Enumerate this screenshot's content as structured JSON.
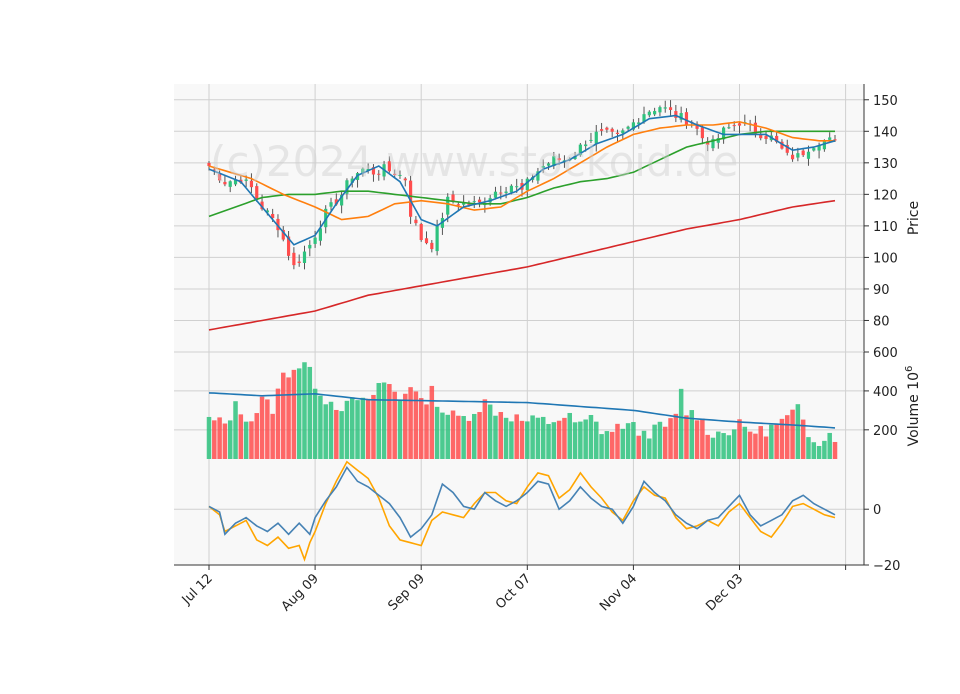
{
  "watermark": "(c)2024 www.stockoid.de",
  "colors": {
    "up": "#2ec27e",
    "down": "#ff4d4d",
    "ma_short": "#1f77b4",
    "ma_mid": "#ff7f0e",
    "ma_long": "#2ca02c",
    "ma_200": "#d62728",
    "osc_fast": "#4682b4",
    "osc_slow": "#ffa500",
    "grid": "#d0d0d0",
    "panel_bg": "#f8f8f8"
  },
  "chart_data": [
    {
      "type": "candlestick",
      "ylabel": "Price",
      "ylim": [
        70,
        155
      ],
      "yticks": [
        80,
        90,
        100,
        110,
        120,
        130,
        140,
        150
      ],
      "x_tick_labels": [
        "Jul 12",
        "Aug 09",
        "Sep 09",
        "Oct 07",
        "Nov 04",
        "Dec 03",
        ""
      ],
      "x_tick_index": [
        0,
        20,
        40,
        60,
        80,
        100,
        120
      ],
      "n_sessions": 119,
      "close_anchors": [
        [
          0,
          129
        ],
        [
          3,
          124
        ],
        [
          6,
          125
        ],
        [
          8,
          122
        ],
        [
          10,
          116
        ],
        [
          13,
          110
        ],
        [
          16,
          97
        ],
        [
          19,
          104
        ],
        [
          22,
          114
        ],
        [
          25,
          120
        ],
        [
          27,
          126
        ],
        [
          29,
          128
        ],
        [
          31,
          127
        ],
        [
          33,
          128
        ],
        [
          35,
          127
        ],
        [
          37,
          125
        ],
        [
          38,
          114
        ],
        [
          40,
          106
        ],
        [
          42,
          104
        ],
        [
          45,
          118
        ],
        [
          48,
          117
        ],
        [
          51,
          117
        ],
        [
          54,
          121
        ],
        [
          57,
          123
        ],
        [
          59,
          121
        ],
        [
          61,
          126
        ],
        [
          63,
          129
        ],
        [
          65,
          131
        ],
        [
          67,
          131
        ],
        [
          69,
          133
        ],
        [
          71,
          137
        ],
        [
          73,
          139
        ],
        [
          75,
          139
        ],
        [
          77,
          138
        ],
        [
          79,
          141
        ],
        [
          82,
          146
        ],
        [
          85,
          148
        ],
        [
          88,
          145
        ],
        [
          91,
          143
        ],
        [
          93,
          138
        ],
        [
          95,
          136
        ],
        [
          97,
          140
        ],
        [
          100,
          143
        ],
        [
          103,
          140
        ],
        [
          106,
          138
        ],
        [
          109,
          132
        ],
        [
          111,
          132
        ],
        [
          113,
          135
        ],
        [
          115,
          137
        ],
        [
          117,
          137
        ],
        [
          118,
          136
        ]
      ],
      "ma_short_anchors": [
        [
          0,
          128
        ],
        [
          6,
          124
        ],
        [
          12,
          112
        ],
        [
          16,
          104
        ],
        [
          20,
          107
        ],
        [
          24,
          117
        ],
        [
          28,
          126
        ],
        [
          32,
          129
        ],
        [
          36,
          124
        ],
        [
          40,
          112
        ],
        [
          43,
          110
        ],
        [
          48,
          116
        ],
        [
          53,
          118
        ],
        [
          58,
          121
        ],
        [
          63,
          128
        ],
        [
          68,
          131
        ],
        [
          73,
          136
        ],
        [
          78,
          139
        ],
        [
          83,
          144
        ],
        [
          88,
          145
        ],
        [
          92,
          142
        ],
        [
          97,
          139
        ],
        [
          101,
          139
        ],
        [
          105,
          139
        ],
        [
          110,
          134
        ],
        [
          114,
          135
        ],
        [
          118,
          137
        ]
      ],
      "ma_mid_anchors": [
        [
          0,
          129
        ],
        [
          8,
          125
        ],
        [
          14,
          120
        ],
        [
          20,
          116
        ],
        [
          25,
          112
        ],
        [
          30,
          113
        ],
        [
          35,
          117
        ],
        [
          40,
          118
        ],
        [
          45,
          117
        ],
        [
          50,
          115
        ],
        [
          55,
          116
        ],
        [
          60,
          121
        ],
        [
          65,
          125
        ],
        [
          70,
          130
        ],
        [
          75,
          135
        ],
        [
          80,
          139
        ],
        [
          85,
          141
        ],
        [
          90,
          142
        ],
        [
          95,
          142
        ],
        [
          100,
          143
        ],
        [
          105,
          141
        ],
        [
          110,
          138
        ],
        [
          115,
          137
        ],
        [
          118,
          137
        ]
      ],
      "ma_long_anchors": [
        [
          0,
          113
        ],
        [
          5,
          116
        ],
        [
          10,
          119
        ],
        [
          15,
          120
        ],
        [
          20,
          120
        ],
        [
          25,
          121
        ],
        [
          30,
          121
        ],
        [
          35,
          120
        ],
        [
          40,
          119
        ],
        [
          45,
          118
        ],
        [
          50,
          117
        ],
        [
          55,
          117
        ],
        [
          60,
          119
        ],
        [
          65,
          122
        ],
        [
          70,
          124
        ],
        [
          75,
          125
        ],
        [
          80,
          127
        ],
        [
          85,
          131
        ],
        [
          90,
          135
        ],
        [
          95,
          137
        ],
        [
          100,
          139
        ],
        [
          105,
          140
        ],
        [
          110,
          140
        ],
        [
          115,
          140
        ],
        [
          118,
          140
        ]
      ],
      "ma_200_anchors": [
        [
          0,
          77
        ],
        [
          10,
          80
        ],
        [
          20,
          83
        ],
        [
          30,
          88
        ],
        [
          40,
          91
        ],
        [
          50,
          94
        ],
        [
          60,
          97
        ],
        [
          70,
          101
        ],
        [
          80,
          105
        ],
        [
          90,
          109
        ],
        [
          100,
          112
        ],
        [
          110,
          116
        ],
        [
          118,
          118
        ]
      ]
    },
    {
      "type": "bar",
      "ylabel": "Volume  10",
      "ylabel_exponent": "6",
      "ylim": [
        50,
        600
      ],
      "yticks": [
        200,
        400,
        600
      ],
      "volume_anchors": [
        [
          0,
          250
        ],
        [
          3,
          230
        ],
        [
          5,
          320
        ],
        [
          8,
          250
        ],
        [
          10,
          350
        ],
        [
          12,
          310
        ],
        [
          14,
          480
        ],
        [
          16,
          520
        ],
        [
          18,
          540
        ],
        [
          20,
          440
        ],
        [
          22,
          360
        ],
        [
          24,
          330
        ],
        [
          26,
          320
        ],
        [
          28,
          360
        ],
        [
          30,
          330
        ],
        [
          32,
          440
        ],
        [
          34,
          430
        ],
        [
          36,
          360
        ],
        [
          38,
          440
        ],
        [
          40,
          330
        ],
        [
          42,
          400
        ],
        [
          44,
          300
        ],
        [
          46,
          270
        ],
        [
          48,
          260
        ],
        [
          50,
          300
        ],
        [
          52,
          340
        ],
        [
          54,
          300
        ],
        [
          56,
          280
        ],
        [
          58,
          260
        ],
        [
          60,
          240
        ],
        [
          62,
          250
        ],
        [
          64,
          240
        ],
        [
          66,
          260
        ],
        [
          68,
          260
        ],
        [
          70,
          220
        ],
        [
          72,
          260
        ],
        [
          74,
          200
        ],
        [
          76,
          190
        ],
        [
          78,
          230
        ],
        [
          80,
          210
        ],
        [
          82,
          180
        ],
        [
          84,
          200
        ],
        [
          86,
          220
        ],
        [
          88,
          260
        ],
        [
          89,
          400
        ],
        [
          90,
          290
        ],
        [
          92,
          280
        ],
        [
          94,
          200
        ],
        [
          96,
          180
        ],
        [
          98,
          200
        ],
        [
          100,
          220
        ],
        [
          102,
          200
        ],
        [
          104,
          190
        ],
        [
          106,
          210
        ],
        [
          108,
          240
        ],
        [
          110,
          280
        ],
        [
          111,
          300
        ],
        [
          113,
          180
        ],
        [
          115,
          150
        ],
        [
          117,
          180
        ],
        [
          118,
          160
        ]
      ],
      "vol_ma_anchors": [
        [
          0,
          390
        ],
        [
          10,
          375
        ],
        [
          20,
          385
        ],
        [
          30,
          355
        ],
        [
          40,
          350
        ],
        [
          50,
          345
        ],
        [
          60,
          340
        ],
        [
          70,
          320
        ],
        [
          80,
          300
        ],
        [
          90,
          260
        ],
        [
          100,
          240
        ],
        [
          110,
          225
        ],
        [
          118,
          210
        ]
      ]
    },
    {
      "type": "line",
      "ylim": [
        -20,
        18
      ],
      "yticks": [
        0,
        -20
      ],
      "osc_fast_anchors": [
        [
          0,
          1
        ],
        [
          2,
          -1
        ],
        [
          3,
          -9
        ],
        [
          5,
          -5
        ],
        [
          7,
          -3
        ],
        [
          9,
          -6
        ],
        [
          11,
          -8
        ],
        [
          13,
          -5
        ],
        [
          15,
          -9
        ],
        [
          17,
          -5
        ],
        [
          19,
          -9
        ],
        [
          20,
          -3
        ],
        [
          22,
          3
        ],
        [
          24,
          8
        ],
        [
          26,
          15
        ],
        [
          28,
          10
        ],
        [
          30,
          8
        ],
        [
          32,
          5
        ],
        [
          34,
          2
        ],
        [
          36,
          -3
        ],
        [
          38,
          -10
        ],
        [
          40,
          -7
        ],
        [
          42,
          -2
        ],
        [
          44,
          9
        ],
        [
          46,
          6
        ],
        [
          48,
          1
        ],
        [
          50,
          0
        ],
        [
          52,
          6
        ],
        [
          54,
          3
        ],
        [
          56,
          1
        ],
        [
          58,
          3
        ],
        [
          60,
          6
        ],
        [
          62,
          10
        ],
        [
          64,
          9
        ],
        [
          66,
          0
        ],
        [
          68,
          3
        ],
        [
          70,
          8
        ],
        [
          72,
          4
        ],
        [
          74,
          1
        ],
        [
          76,
          0
        ],
        [
          78,
          -5
        ],
        [
          80,
          1
        ],
        [
          82,
          10
        ],
        [
          84,
          6
        ],
        [
          86,
          3
        ],
        [
          88,
          -2
        ],
        [
          90,
          -5
        ],
        [
          92,
          -7
        ],
        [
          94,
          -4
        ],
        [
          96,
          -3
        ],
        [
          98,
          1
        ],
        [
          100,
          5
        ],
        [
          102,
          -2
        ],
        [
          104,
          -6
        ],
        [
          106,
          -4
        ],
        [
          108,
          -2
        ],
        [
          110,
          3
        ],
        [
          112,
          5
        ],
        [
          114,
          2
        ],
        [
          116,
          0
        ],
        [
          118,
          -2
        ]
      ],
      "osc_slow_anchors": [
        [
          0,
          1
        ],
        [
          2,
          -2
        ],
        [
          3,
          -8
        ],
        [
          5,
          -6
        ],
        [
          7,
          -4
        ],
        [
          9,
          -11
        ],
        [
          11,
          -13
        ],
        [
          13,
          -10
        ],
        [
          15,
          -14
        ],
        [
          17,
          -13
        ],
        [
          18,
          -18
        ],
        [
          19,
          -12
        ],
        [
          20,
          -8
        ],
        [
          22,
          2
        ],
        [
          24,
          10
        ],
        [
          26,
          17
        ],
        [
          28,
          14
        ],
        [
          30,
          11
        ],
        [
          32,
          4
        ],
        [
          34,
          -6
        ],
        [
          36,
          -11
        ],
        [
          38,
          -12
        ],
        [
          40,
          -13
        ],
        [
          42,
          -4
        ],
        [
          44,
          -1
        ],
        [
          46,
          -2
        ],
        [
          48,
          -3
        ],
        [
          50,
          2
        ],
        [
          52,
          6
        ],
        [
          54,
          6
        ],
        [
          56,
          3
        ],
        [
          58,
          2
        ],
        [
          60,
          8
        ],
        [
          62,
          13
        ],
        [
          64,
          12
        ],
        [
          66,
          4
        ],
        [
          68,
          7
        ],
        [
          70,
          13
        ],
        [
          72,
          8
        ],
        [
          74,
          4
        ],
        [
          76,
          -1
        ],
        [
          78,
          -4
        ],
        [
          80,
          3
        ],
        [
          82,
          8
        ],
        [
          84,
          5
        ],
        [
          86,
          4
        ],
        [
          88,
          -3
        ],
        [
          90,
          -7
        ],
        [
          92,
          -6
        ],
        [
          94,
          -4
        ],
        [
          96,
          -6
        ],
        [
          98,
          -1
        ],
        [
          100,
          2
        ],
        [
          102,
          -3
        ],
        [
          104,
          -8
        ],
        [
          106,
          -10
        ],
        [
          108,
          -5
        ],
        [
          110,
          1
        ],
        [
          112,
          2
        ],
        [
          114,
          0
        ],
        [
          116,
          -2
        ],
        [
          118,
          -3
        ]
      ]
    }
  ]
}
